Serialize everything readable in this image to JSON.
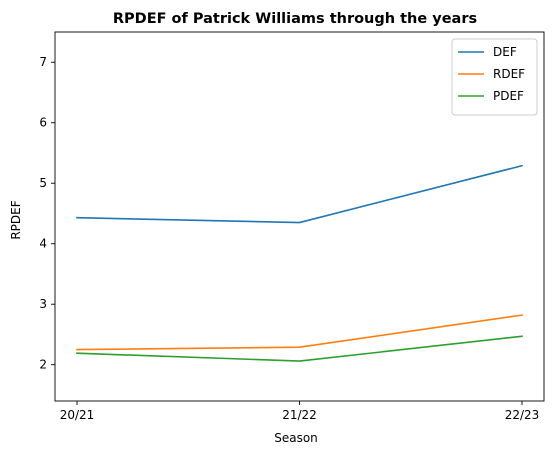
{
  "chart_data": {
    "type": "line",
    "title": "RPDEF of Patrick Williams through the years",
    "xlabel": "Season",
    "ylabel": "RPDEF",
    "categories": [
      "20/21",
      "21/22",
      "22/23"
    ],
    "ylim": [
      1.4,
      7.5
    ],
    "yticks": [
      2,
      3,
      4,
      5,
      6,
      7
    ],
    "grid": false,
    "legend_position": "top-right",
    "series": [
      {
        "name": "DEF",
        "color": "#1f77b4",
        "values": [
          4.43,
          4.35,
          5.29
        ]
      },
      {
        "name": "RDEF",
        "color": "#ff7f0e",
        "values": [
          2.25,
          2.29,
          2.82
        ]
      },
      {
        "name": "PDEF",
        "color": "#2ca02c",
        "values": [
          2.19,
          2.06,
          2.47
        ]
      }
    ]
  }
}
